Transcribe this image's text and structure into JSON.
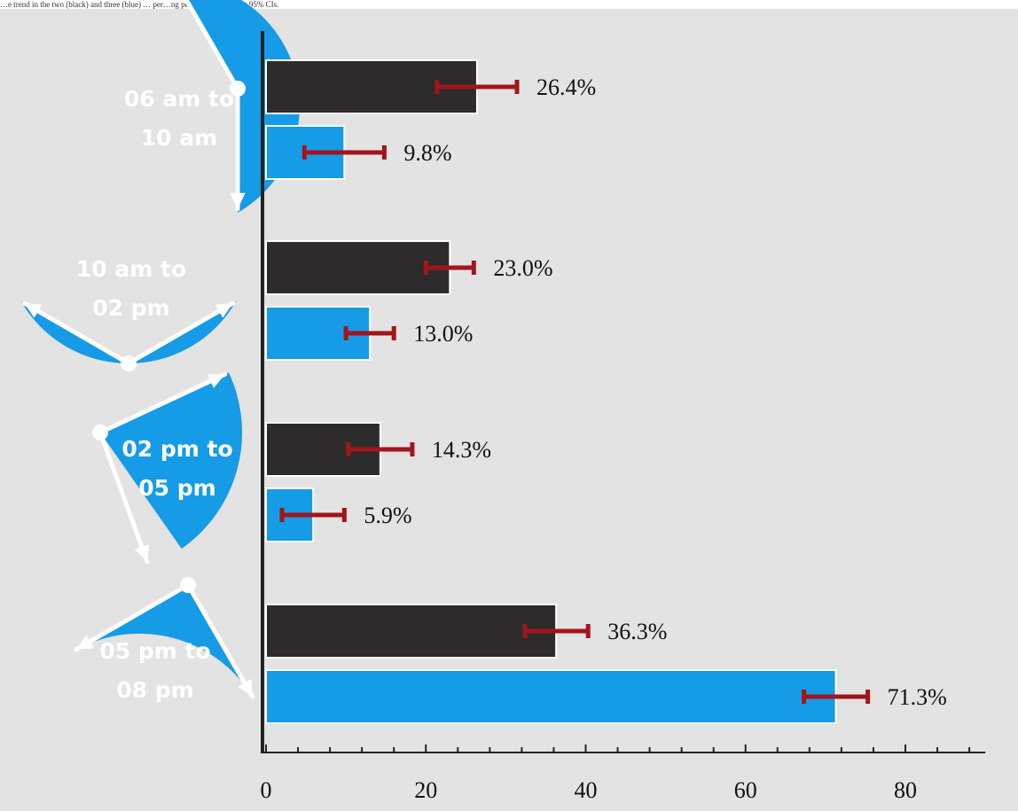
{
  "caption": "…e trend in the two (black) and three (blue) … per…ng pe…d bars represent 95% CIs.",
  "colors": {
    "background": "#e3e3e3",
    "series_dark": "#2d2b2c",
    "series_blue": "#169be6",
    "error_bar": "#a3141c",
    "clock_fill": "#169be6",
    "clock_hands": "#ffffff",
    "axis": "#222222"
  },
  "chart_data": {
    "type": "bar",
    "orientation": "horizontal",
    "categories": [
      "06 am to 10 am",
      "10 am to 02 pm",
      "02 pm to 05 pm",
      "05 pm to 08 pm"
    ],
    "category_lines": [
      [
        "06 am to",
        "10 am"
      ],
      [
        "10 am to",
        "02 pm"
      ],
      [
        "02 pm to",
        "05 pm"
      ],
      [
        "05 pm to",
        "08 pm"
      ]
    ],
    "series": [
      {
        "color": "#2d2b2c",
        "values": [
          26.4,
          23.0,
          14.3,
          36.3
        ],
        "labels": [
          "26.4%",
          "23.0%",
          "14.3%",
          "36.3%"
        ],
        "ci_low": [
          21.4,
          20.0,
          10.3,
          32.4
        ],
        "ci_high": [
          31.4,
          26.0,
          18.3,
          40.3
        ]
      },
      {
        "color": "#169be6",
        "values": [
          9.8,
          13.0,
          5.9,
          71.3
        ],
        "labels": [
          "9.8%",
          "13.0%",
          "5.9%",
          "71.3%"
        ],
        "ci_low": [
          4.8,
          10.0,
          2.0,
          67.3
        ],
        "ci_high": [
          14.8,
          16.0,
          9.8,
          75.3
        ]
      }
    ],
    "x_ticks": [
      0,
      20,
      40,
      60,
      80
    ],
    "x_tick_labels": [
      "0",
      "20",
      "40",
      "60",
      "80"
    ],
    "xlim": [
      0,
      90
    ],
    "xlabel": "",
    "ylabel": "",
    "error_bars": "95% CI",
    "grid": false,
    "legend": "none"
  }
}
